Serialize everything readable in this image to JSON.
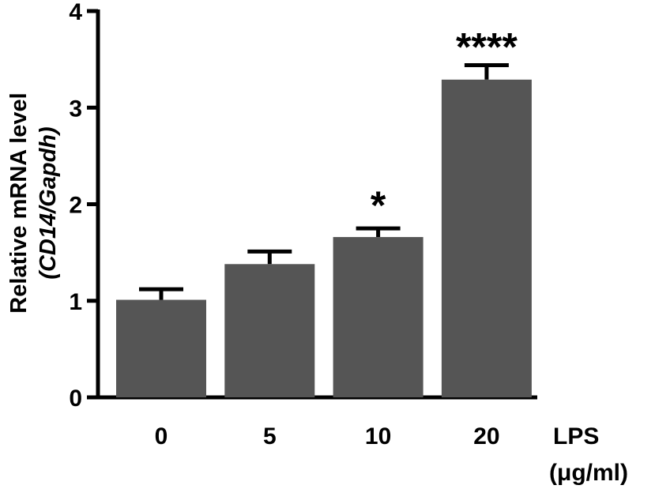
{
  "chart_data": {
    "type": "bar",
    "categories": [
      "0",
      "5",
      "10",
      "20"
    ],
    "values": [
      1.01,
      1.38,
      1.66,
      3.29
    ],
    "errors": [
      0.11,
      0.13,
      0.09,
      0.15
    ],
    "significance": [
      "",
      "",
      "*",
      "****"
    ],
    "ylabel_line1": "Relative mRNA level",
    "ylabel_line2": "(CD14/Gapdh)",
    "xlabel_line1": "LPS",
    "xlabel_line2": "(μg/ml)",
    "ylim": [
      0,
      4
    ],
    "yticks": [
      "0",
      "1",
      "2",
      "3",
      "4"
    ],
    "bar_color": "#555555",
    "grid": false,
    "legend": "none"
  }
}
